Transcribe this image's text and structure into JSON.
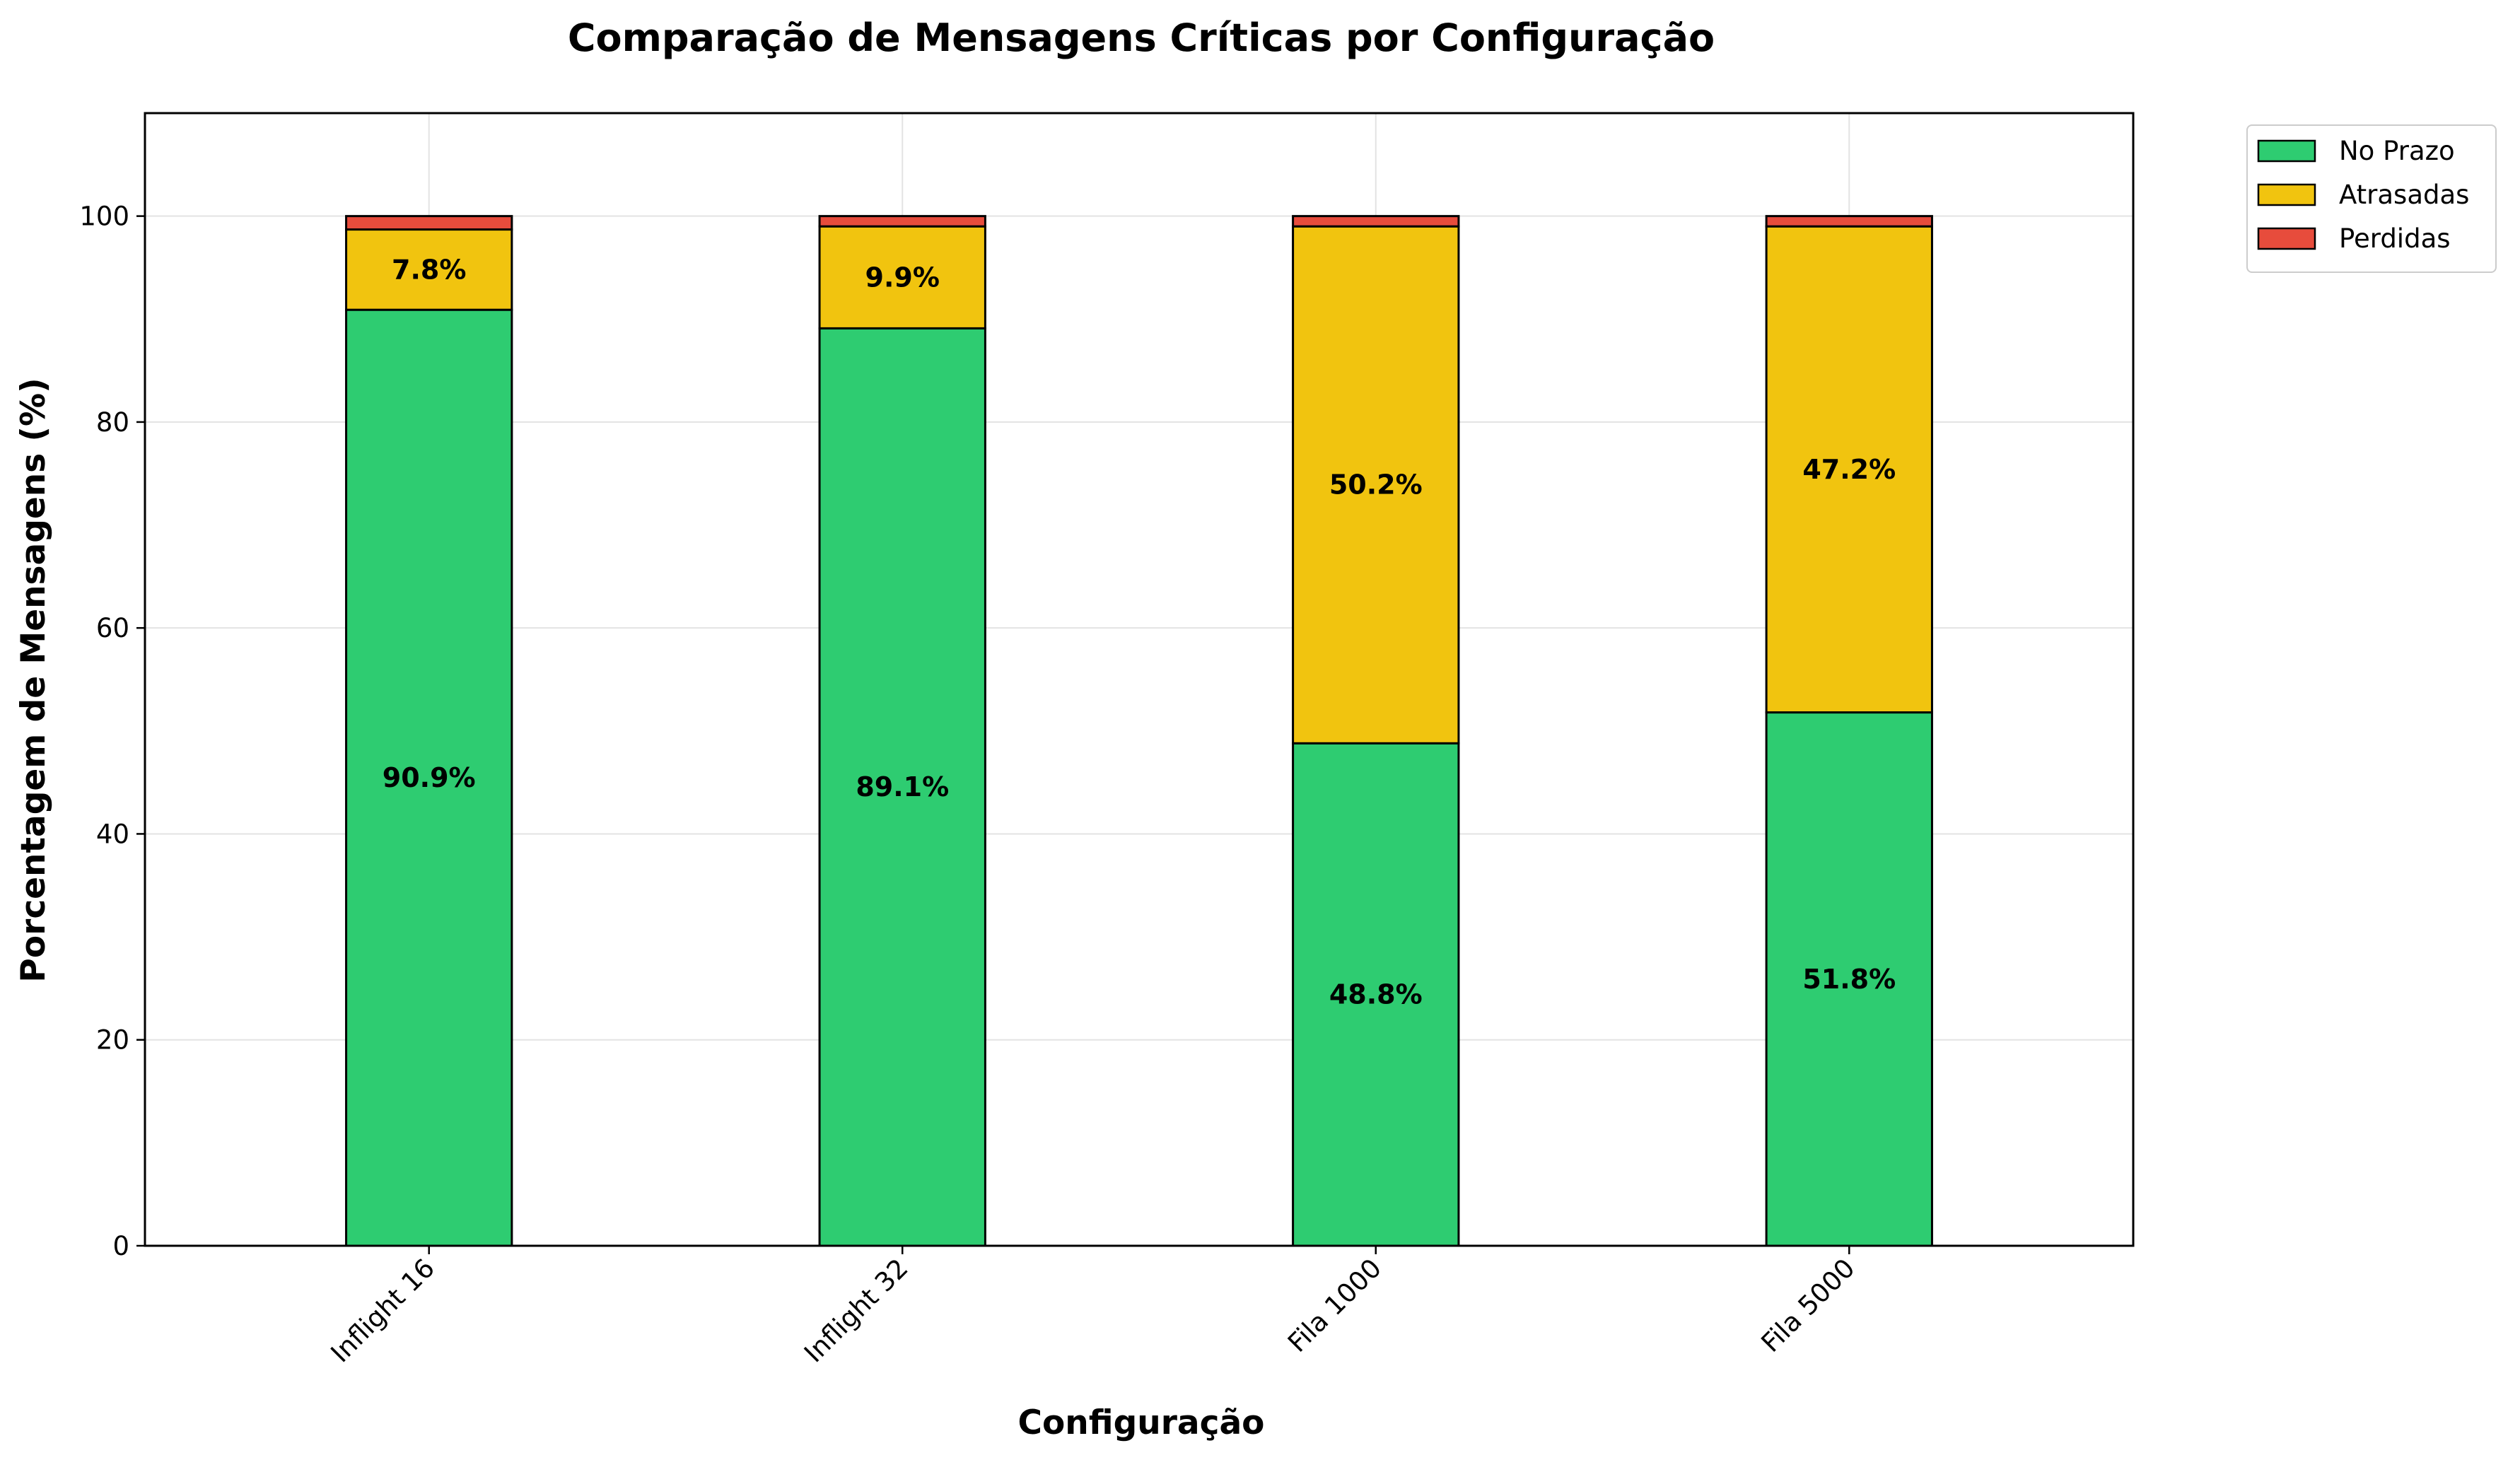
{
  "chart_data": {
    "type": "bar",
    "stacked": true,
    "title": "Comparação de Mensagens Críticas por Configuração",
    "xlabel": "Configuração",
    "ylabel": "Porcentagem de Mensagens (%)",
    "categories": [
      "Inflight 16",
      "Inflight 32",
      "Fila 1000",
      "Fila 5000"
    ],
    "series": [
      {
        "name": "No Prazo",
        "color": "#2ecc71",
        "values": [
          90.9,
          89.1,
          48.8,
          51.8
        ],
        "labels": [
          "90.9%",
          "89.1%",
          "48.8%",
          "51.8%"
        ]
      },
      {
        "name": "Atrasadas",
        "color": "#f1c40f",
        "values": [
          7.8,
          9.9,
          50.2,
          47.2
        ],
        "labels": [
          "7.8%",
          "9.9%",
          "50.2%",
          "47.2%"
        ]
      },
      {
        "name": "Perdidas",
        "color": "#e74c3c",
        "values": [
          1.3,
          1.0,
          1.0,
          1.0
        ],
        "labels": [
          "",
          "",
          "",
          ""
        ]
      }
    ],
    "ylim": [
      0,
      110
    ],
    "yticks": [
      0,
      20,
      40,
      60,
      80,
      100
    ],
    "grid": true,
    "legend_position": "outside top-right",
    "xtick_rotation": 45
  }
}
